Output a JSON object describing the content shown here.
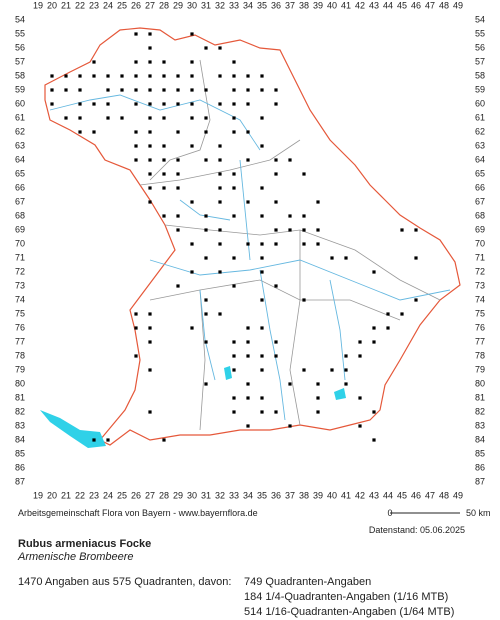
{
  "grid": {
    "columns": [
      19,
      20,
      21,
      22,
      23,
      24,
      25,
      26,
      27,
      28,
      29,
      30,
      31,
      32,
      33,
      34,
      35,
      36,
      37,
      38,
      39,
      40,
      41,
      42,
      43,
      44,
      45,
      46,
      47,
      48,
      49
    ],
    "rows": [
      54,
      55,
      56,
      57,
      58,
      59,
      60,
      61,
      62,
      63,
      64,
      65,
      66,
      67,
      68,
      69,
      70,
      71,
      72,
      73,
      74,
      75,
      76,
      77,
      78,
      79,
      80,
      81,
      82,
      83,
      84,
      85,
      86,
      87
    ]
  },
  "records": [
    {
      "row": 55,
      "cols": [
        26,
        27,
        30
      ]
    },
    {
      "row": 56,
      "cols": [
        27,
        31,
        32
      ]
    },
    {
      "row": 57,
      "cols": [
        23,
        26,
        27,
        28,
        30,
        33
      ]
    },
    {
      "row": 58,
      "cols": [
        20,
        21,
        22,
        23,
        24,
        25,
        26,
        27,
        28,
        29,
        30,
        32,
        33,
        34,
        35
      ]
    },
    {
      "row": 59,
      "cols": [
        20,
        21,
        22,
        24,
        25,
        26,
        27,
        28,
        29,
        30,
        31,
        33,
        34,
        35,
        36
      ]
    },
    {
      "row": 60,
      "cols": [
        20,
        22,
        23,
        24,
        26,
        27,
        28,
        29,
        30,
        32,
        33,
        34,
        36
      ]
    },
    {
      "row": 61,
      "cols": [
        21,
        22,
        24,
        25,
        27,
        28,
        30,
        31,
        33,
        35
      ]
    },
    {
      "row": 62,
      "cols": [
        22,
        23,
        26,
        27,
        29,
        31,
        33,
        34
      ]
    },
    {
      "row": 63,
      "cols": [
        26,
        27,
        28,
        30,
        32,
        35
      ]
    },
    {
      "row": 64,
      "cols": [
        26,
        27,
        28,
        29,
        31,
        32,
        34,
        36,
        37
      ]
    },
    {
      "row": 65,
      "cols": [
        27,
        28,
        29,
        32,
        33,
        36,
        38
      ]
    },
    {
      "row": 66,
      "cols": [
        27,
        28,
        29,
        32,
        33,
        35
      ]
    },
    {
      "row": 67,
      "cols": [
        27,
        30,
        32,
        34,
        36,
        39
      ]
    },
    {
      "row": 68,
      "cols": [
        28,
        29,
        31,
        33,
        35,
        37,
        38
      ]
    },
    {
      "row": 69,
      "cols": [
        29,
        31,
        32,
        36,
        37,
        38,
        39,
        45,
        46
      ]
    },
    {
      "row": 70,
      "cols": [
        30,
        32,
        34,
        35,
        36,
        38,
        39
      ]
    },
    {
      "row": 71,
      "cols": [
        31,
        33,
        35,
        40,
        41,
        46
      ]
    },
    {
      "row": 72,
      "cols": [
        30,
        32,
        35,
        43
      ]
    },
    {
      "row": 73,
      "cols": [
        29,
        33,
        36
      ]
    },
    {
      "row": 74,
      "cols": [
        31,
        35,
        38,
        46
      ]
    },
    {
      "row": 75,
      "cols": [
        26,
        27,
        31,
        32,
        44,
        45
      ]
    },
    {
      "row": 76,
      "cols": [
        26,
        27,
        30,
        34,
        35,
        43,
        44
      ]
    },
    {
      "row": 77,
      "cols": [
        27,
        31,
        33,
        34,
        36,
        42,
        43
      ]
    },
    {
      "row": 78,
      "cols": [
        26,
        33,
        34,
        35,
        36,
        41,
        42
      ]
    },
    {
      "row": 79,
      "cols": [
        27,
        33,
        35,
        38,
        40,
        41
      ]
    },
    {
      "row": 80,
      "cols": [
        31,
        34,
        37,
        39,
        41
      ]
    },
    {
      "row": 81,
      "cols": [
        33,
        34,
        35,
        39,
        42
      ]
    },
    {
      "row": 82,
      "cols": [
        27,
        33,
        35,
        36,
        39,
        43
      ]
    },
    {
      "row": 83,
      "cols": [
        34,
        37,
        42
      ]
    },
    {
      "row": 84,
      "cols": [
        23,
        24,
        28,
        43
      ]
    }
  ],
  "footer": {
    "credit": "Arbeitsgemeinschaft Flora von Bayern - www.bayernflora.de",
    "scale": {
      "start": "0",
      "end": "50 km"
    },
    "date": "Datenstand: 05.06.2025"
  },
  "species": {
    "name": "Rubus armeniacus Focke",
    "common": "Armenische Brombeere"
  },
  "stats": {
    "summary": "1470 Angaben aus 575 Quadranten, davon:",
    "lines": [
      "749 Quadranten-Angaben",
      "184 1/4-Quadranten-Angaben (1/16 MTB)",
      "514 1/16-Quadranten-Angaben (1/64 MTB)"
    ]
  }
}
